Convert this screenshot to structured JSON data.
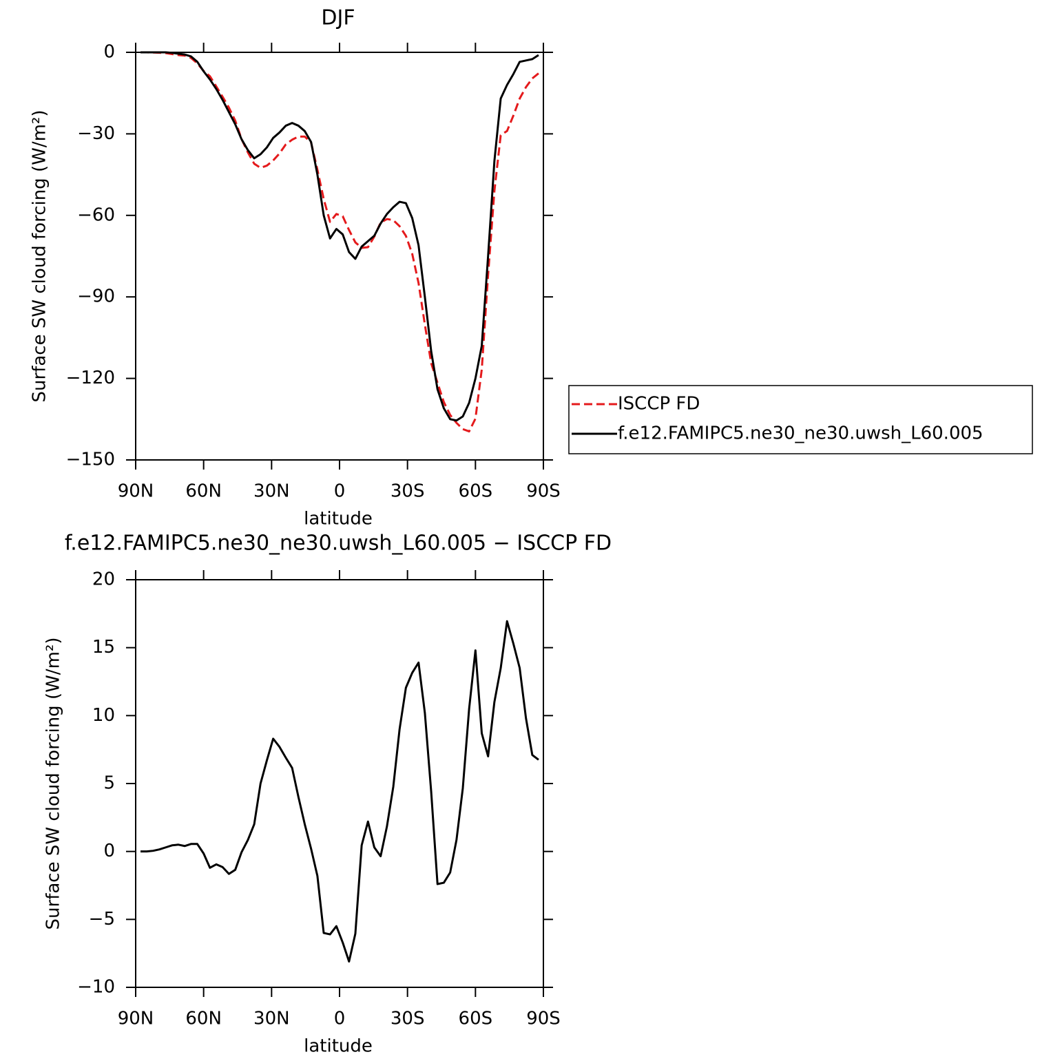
{
  "chart_data": [
    {
      "type": "line",
      "title": "DJF",
      "xlabel": "latitude",
      "ylabel": "Surface SW cloud forcing (W/m²)",
      "x": [
        87.86,
        85.1,
        82.31,
        79.53,
        76.74,
        73.95,
        71.16,
        68.37,
        65.58,
        62.79,
        60.0,
        57.21,
        54.42,
        51.63,
        48.84,
        46.04,
        43.25,
        40.46,
        37.67,
        34.88,
        32.09,
        29.3,
        26.51,
        23.72,
        20.93,
        18.14,
        15.35,
        12.56,
        9.77,
        6.98,
        4.19,
        1.4,
        -1.4,
        -4.19,
        -6.98,
        -9.77,
        -12.56,
        -15.35,
        -18.14,
        -20.93,
        -23.72,
        -26.51,
        -29.3,
        -32.09,
        -34.88,
        -37.67,
        -40.46,
        -43.25,
        -46.04,
        -48.84,
        -51.63,
        -54.42,
        -57.21,
        -60.0,
        -62.79,
        -65.58,
        -68.37,
        -71.16,
        -73.95,
        -76.74,
        -79.53,
        -82.31,
        -85.1,
        -87.86
      ],
      "series": [
        {
          "name": "ISCCP FD",
          "color": "#e41a1c",
          "line_style": "dashed",
          "values": [
            0,
            0,
            -0.05,
            -0.15,
            -0.3,
            -0.65,
            -1.0,
            -1.2,
            -2.05,
            -4.05,
            -6.85,
            -8.8,
            -12.55,
            -16.35,
            -20.35,
            -25.15,
            -31.95,
            -36.85,
            -41,
            -42.5,
            -41.7,
            -39.8,
            -37.2,
            -33.9,
            -32.15,
            -31,
            -31,
            -33.2,
            -43.2,
            -54,
            -62.4,
            -59.5,
            -60.3,
            -65.4,
            -69.95,
            -71.95,
            -71.7,
            -67.8,
            -62.65,
            -61.35,
            -61.75,
            -64,
            -67.55,
            -74.15,
            -84.9,
            -100.2,
            -114.4,
            -121.6,
            -128.7,
            -133.45,
            -136.35,
            -138.65,
            -139.5,
            -134.8,
            -116.7,
            -82,
            -51,
            -30.5,
            -28.95,
            -23.3,
            -17,
            -12.8,
            -9.6,
            -7.75
          ]
        },
        {
          "name": "f.e12.FAMIPC5.ne30_ne30.uwsh_L60.005",
          "color": "#000000",
          "line_style": "solid",
          "values": [
            0,
            0,
            0,
            0,
            0,
            -0.2,
            -0.5,
            -0.8,
            -1.5,
            -3.5,
            -7,
            -10,
            -13.5,
            -17.5,
            -22,
            -26.5,
            -32,
            -36,
            -39,
            -37.5,
            -35,
            -31.5,
            -29.5,
            -27,
            -26,
            -27,
            -29,
            -33,
            -45,
            -60,
            -68.5,
            -65,
            -67,
            -73.5,
            -76,
            -71.5,
            -69.5,
            -67.5,
            -63,
            -59.5,
            -57,
            -55,
            -55.5,
            -61,
            -71,
            -90,
            -110,
            -124,
            -131,
            -135,
            -135.5,
            -134,
            -129,
            -120,
            -108,
            -75,
            -40,
            -17,
            -12,
            -8,
            -3.5,
            -3,
            -2.5,
            -1
          ]
        }
      ],
      "xlim": [
        90,
        -90
      ],
      "xticks": [
        {
          "value": 90,
          "label": "90N"
        },
        {
          "value": 60,
          "label": "60N"
        },
        {
          "value": 30,
          "label": "30N"
        },
        0,
        {
          "value": -30,
          "label": "30S"
        },
        {
          "value": -60,
          "label": "60S"
        },
        {
          "value": -90,
          "label": "90S"
        }
      ],
      "ylim": [
        -150,
        0
      ],
      "yticks": [
        0,
        {
          "value": -30,
          "label": "−30"
        },
        {
          "value": -60,
          "label": "−60"
        },
        {
          "value": -90,
          "label": "−90"
        },
        {
          "value": -120,
          "label": "−120"
        },
        {
          "value": -150,
          "label": "−150"
        }
      ],
      "legend": "outside-right"
    },
    {
      "type": "line",
      "title": "f.e12.FAMIPC5.ne30_ne30.uwsh_L60.005 − ISCCP FD",
      "xlabel": "latitude",
      "ylabel": "Surface SW cloud forcing (W/m²)",
      "x": [
        87.86,
        85.1,
        82.31,
        79.53,
        76.74,
        73.95,
        71.16,
        68.37,
        65.58,
        62.79,
        60.0,
        57.21,
        54.42,
        51.63,
        48.84,
        46.04,
        43.25,
        40.46,
        37.67,
        34.88,
        32.09,
        29.3,
        26.51,
        23.72,
        20.93,
        18.14,
        15.35,
        12.56,
        9.77,
        6.98,
        4.19,
        1.4,
        -1.4,
        -4.19,
        -6.98,
        -9.77,
        -12.56,
        -15.35,
        -18.14,
        -20.93,
        -23.72,
        -26.51,
        -29.3,
        -32.09,
        -34.88,
        -37.67,
        -40.46,
        -43.25,
        -46.04,
        -48.84,
        -51.63,
        -54.42,
        -57.21,
        -60.0,
        -62.79,
        -65.58,
        -68.37,
        -71.16,
        -73.95,
        -76.74,
        -79.53,
        -82.31,
        -85.1,
        -87.86
      ],
      "series": [
        {
          "color": "#000000",
          "line_style": "solid",
          "values": [
            0,
            0,
            0.05,
            0.15,
            0.3,
            0.45,
            0.5,
            0.4,
            0.55,
            0.55,
            -0.15,
            -1.2,
            -0.95,
            -1.15,
            -1.65,
            -1.35,
            -0.05,
            0.85,
            2.0,
            5.0,
            6.7,
            8.3,
            7.7,
            6.9,
            6.15,
            4.0,
            2.0,
            0.2,
            -1.8,
            -6.0,
            -6.1,
            -5.5,
            -6.7,
            -8.1,
            -6.05,
            0.45,
            2.2,
            0.3,
            -0.35,
            1.85,
            4.75,
            9.0,
            12.05,
            13.15,
            13.9,
            10.2,
            4.4,
            -2.4,
            -2.3,
            -1.55,
            0.85,
            4.65,
            10.5,
            14.8,
            8.7,
            7.0,
            11.0,
            13.5,
            16.95,
            15.3,
            13.5,
            9.8,
            7.1,
            6.75
          ]
        }
      ],
      "xlim": [
        90,
        -90
      ],
      "xticks": [
        {
          "value": 90,
          "label": "90N"
        },
        {
          "value": 60,
          "label": "60N"
        },
        {
          "value": 30,
          "label": "30N"
        },
        0,
        {
          "value": -30,
          "label": "30S"
        },
        {
          "value": -60,
          "label": "60S"
        },
        {
          "value": -90,
          "label": "90S"
        }
      ],
      "ylim": [
        -10,
        20
      ],
      "yticks": [
        20,
        15,
        10,
        5,
        0,
        {
          "value": -5,
          "label": "−5"
        },
        {
          "value": -10,
          "label": "−10"
        }
      ]
    }
  ]
}
